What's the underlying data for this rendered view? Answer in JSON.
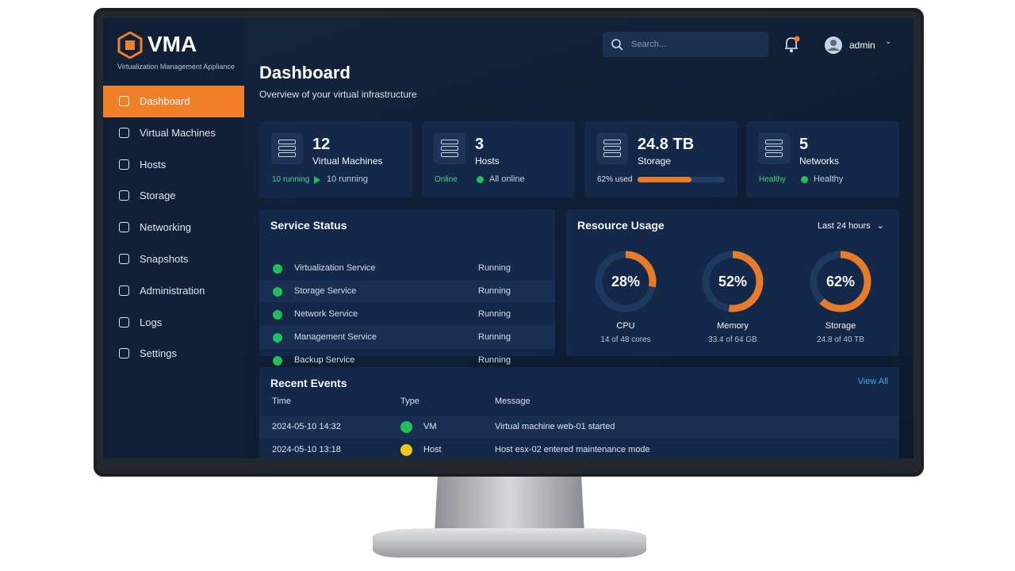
{
  "app": {
    "logo": "VMA",
    "tagline": "Virtualization Management Appliance"
  },
  "nav": [
    "Dashboard",
    "Virtual Machines",
    "Hosts",
    "Storage",
    "Networking",
    "Snapshots",
    "Administration",
    "Logs",
    "Settings"
  ],
  "topbar": {
    "search_placeholder": "Search...",
    "user": "admin"
  },
  "header": {
    "title": "Dashboard",
    "subtitle": "Overview of your virtual infrastructure"
  },
  "cards": [
    {
      "value": "12",
      "label": "Virtual Machines",
      "tag": "10 running",
      "status": "10 running"
    },
    {
      "value": "3",
      "label": "Hosts",
      "tag": "Online",
      "status": "All online"
    },
    {
      "value": "24.8 TB",
      "label": "Storage",
      "tag": "62% used",
      "usage": 62
    },
    {
      "value": "5",
      "label": "Networks",
      "tag": "Healthy",
      "status": "Healthy"
    }
  ],
  "services": {
    "title": "Service Status",
    "rows": [
      [
        "Virtualization Service",
        "Running"
      ],
      [
        "Storage Service",
        "Running"
      ],
      [
        "Network Service",
        "Running"
      ],
      [
        "Management Service",
        "Running"
      ],
      [
        "Backup Service",
        "Running"
      ]
    ]
  },
  "resources": {
    "title": "Resource Usage",
    "range": "Last 24 hours",
    "gauges": [
      {
        "value": 28,
        "label": "28%",
        "name": "CPU",
        "detail": "14 of 48 cores"
      },
      {
        "value": 52,
        "label": "52%",
        "name": "Memory",
        "detail": "33.4 of 64 GB"
      },
      {
        "value": 62,
        "label": "62%",
        "name": "Storage",
        "detail": "24.8 of 40 TB"
      }
    ]
  },
  "events": {
    "title": "Recent Events",
    "view_all": "View All",
    "columns": [
      "Time",
      "Type",
      "Message"
    ],
    "rows": [
      [
        "2024-05-10 14:32",
        "VM",
        "Virtual machine web-01 started"
      ],
      [
        "2024-05-10 13:18",
        "Host",
        "Host esx-02 entered maintenance mode"
      ]
    ]
  }
}
